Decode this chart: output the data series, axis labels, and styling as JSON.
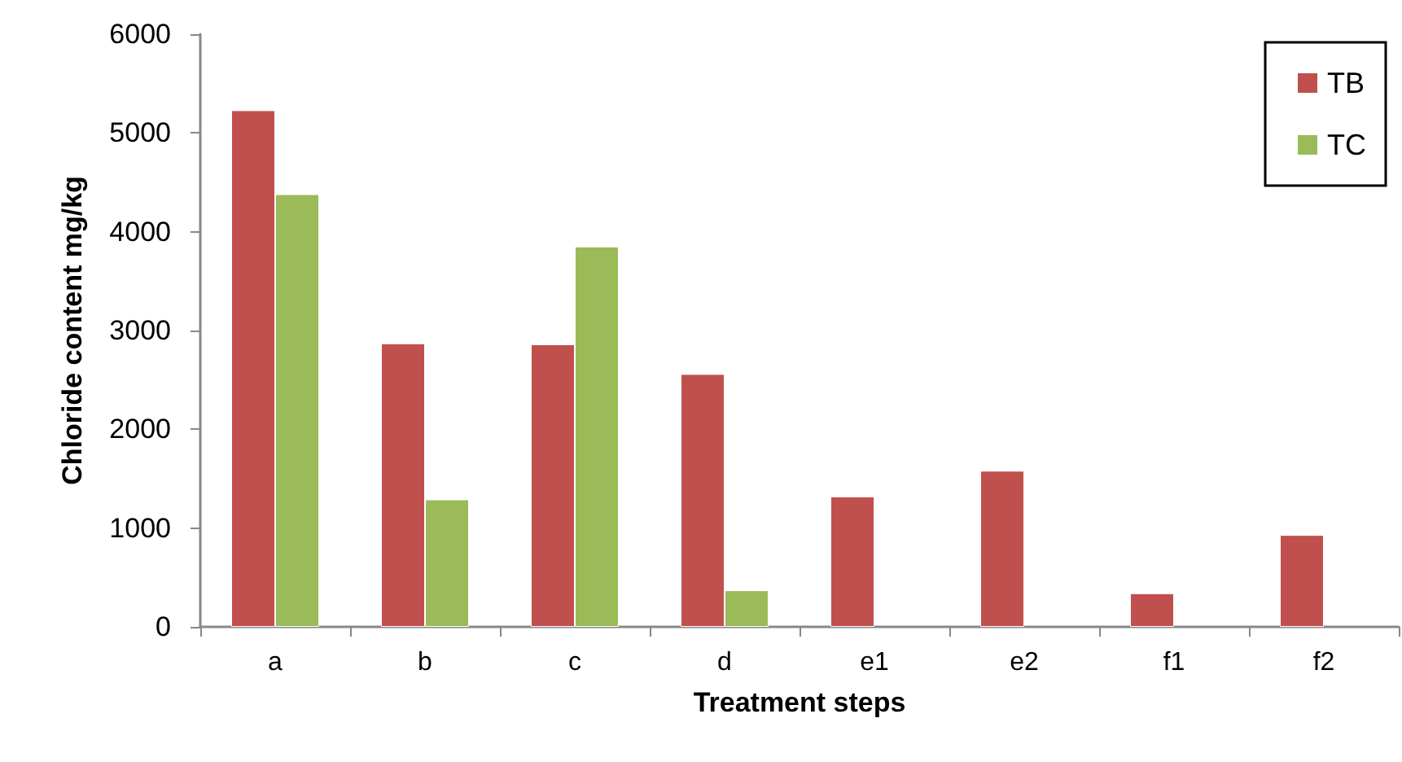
{
  "chart_data": {
    "type": "bar",
    "xlabel": "Treatment steps",
    "ylabel": "Chloride content mg/kg",
    "categories": [
      "a",
      "b",
      "c",
      "d",
      "e1",
      "e2",
      "f1",
      "f2"
    ],
    "series": [
      {
        "name": "TB",
        "color": "#c0504d",
        "values": [
          5230,
          2870,
          2860,
          2560,
          1320,
          1580,
          340,
          930
        ]
      },
      {
        "name": "TC",
        "color": "#9bbb59",
        "values": [
          4380,
          1290,
          3850,
          370,
          null,
          null,
          null,
          null
        ]
      }
    ],
    "ylim": [
      0,
      6000
    ],
    "yticks": [
      0,
      1000,
      2000,
      3000,
      4000,
      5000,
      6000
    ],
    "grid": false,
    "legend": "top right"
  }
}
